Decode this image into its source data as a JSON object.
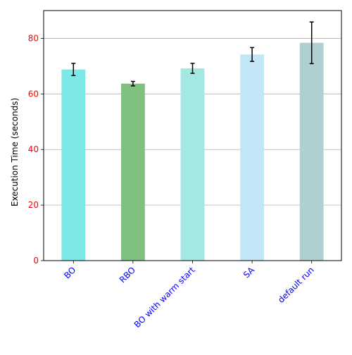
{
  "chart_data": {
    "type": "bar",
    "title": "",
    "xlabel": "",
    "ylabel": "Execution Time (seconds)",
    "categories": [
      "BO",
      "RBO",
      "BO with warm start",
      "SA",
      "default run"
    ],
    "values": [
      68.8,
      63.7,
      69.2,
      74.2,
      78.4
    ],
    "errors": [
      2.2,
      0.8,
      1.8,
      2.5,
      7.5
    ],
    "bar_colors": [
      "#7de8e8",
      "#80c080",
      "#a3e8e3",
      "#c2e6f5",
      "#afcfd3"
    ],
    "ylim": [
      0,
      90
    ],
    "yticks": [
      0,
      20,
      40,
      60,
      80
    ],
    "grid": "y",
    "ytick_color": "#ff0000",
    "xtick_color": "#0000ff"
  }
}
